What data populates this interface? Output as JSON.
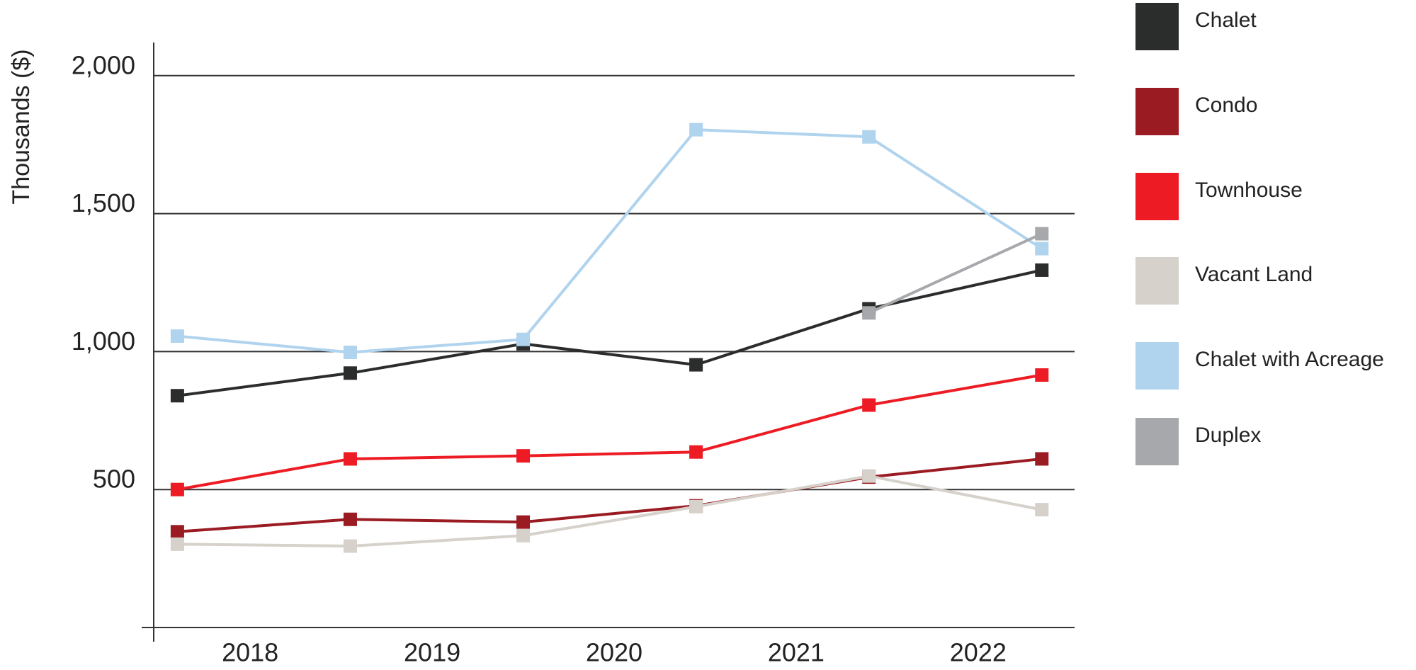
{
  "chart_data": {
    "type": "line",
    "ylabel": "Thousands ($)",
    "x": [
      2017.6,
      2018.55,
      2019.5,
      2020.45,
      2021.4,
      2022.35
    ],
    "xlim": [
      2017.47,
      2022.53
    ],
    "xticks": [
      2018,
      2019,
      2020,
      2021,
      2022
    ],
    "ylim": [
      0,
      2120
    ],
    "yticks": [
      {
        "value": 500,
        "label": "500"
      },
      {
        "value": 1000,
        "label": "1,000"
      },
      {
        "value": 1500,
        "label": "1,500"
      },
      {
        "value": 2000,
        "label": "2,000"
      }
    ],
    "grid": true,
    "legend": "right",
    "series": [
      {
        "name": "Chalet",
        "color": "#2b2d2c",
        "values": [
          840,
          922,
          1028,
          952,
          1155,
          1295
        ]
      },
      {
        "name": "Condo",
        "color": "#9b1b23",
        "values": [
          347,
          392,
          382,
          441,
          545,
          611
        ]
      },
      {
        "name": "Townhouse",
        "color": "#ed1c24",
        "values": [
          500,
          611,
          622,
          636,
          806,
          915
        ]
      },
      {
        "name": "Vacant Land",
        "color": "#d6d1ca",
        "values": [
          302,
          295,
          333,
          438,
          549,
          427
        ]
      },
      {
        "name": "Chalet with Acreage",
        "color": "#b0d3ee",
        "values": [
          1056,
          997,
          1044,
          1804,
          1778,
          1373
        ]
      },
      {
        "name": "Duplex",
        "color": "#a7a8ab",
        "values": [
          null,
          null,
          null,
          null,
          1140,
          1427
        ]
      }
    ]
  }
}
